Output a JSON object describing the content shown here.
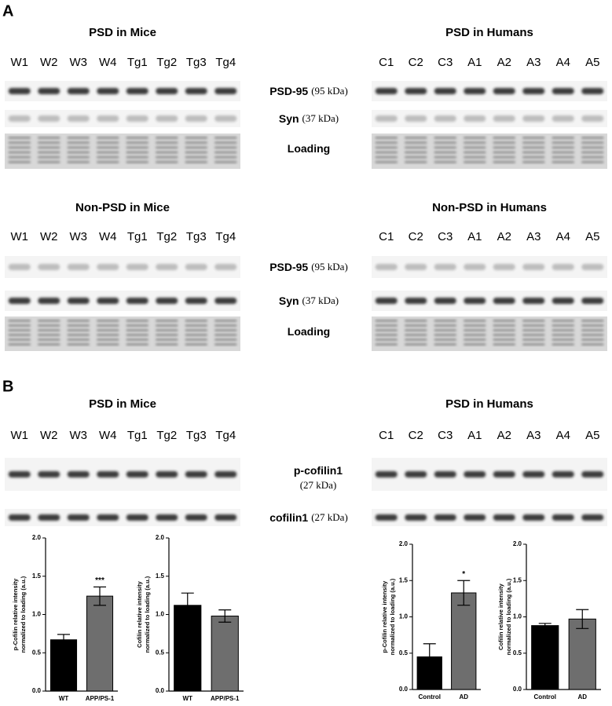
{
  "panel_a": {
    "label": "A",
    "blots": [
      {
        "title": "PSD in Mice",
        "lanes": [
          "W1",
          "W2",
          "W3",
          "W4",
          "Tg1",
          "Tg2",
          "Tg3",
          "Tg4"
        ]
      },
      {
        "title": "PSD in Humans",
        "lanes": [
          "C1",
          "C2",
          "C3",
          "A1",
          "A2",
          "A3",
          "A4",
          "A5"
        ]
      },
      {
        "title": "Non-PSD in Mice",
        "lanes": [
          "W1",
          "W2",
          "W3",
          "W4",
          "Tg1",
          "Tg2",
          "Tg3",
          "Tg4"
        ]
      },
      {
        "title": "Non-PSD in Humans",
        "lanes": [
          "C1",
          "C2",
          "C3",
          "A1",
          "A2",
          "A3",
          "A4",
          "A5"
        ]
      }
    ],
    "rows": [
      [
        {
          "name": "PSD-95",
          "mw": "(95 kDa)"
        },
        {
          "name": "Syn",
          "mw": "(37 kDa)"
        },
        {
          "name": "Loading"
        }
      ],
      [
        {
          "name": "PSD-95",
          "mw": "(95 kDa)"
        },
        {
          "name": "Syn",
          "mw": "(37 kDa)"
        },
        {
          "name": "Loading"
        }
      ]
    ]
  },
  "panel_b": {
    "label": "B",
    "blots": [
      {
        "title": "PSD in Mice",
        "lanes": [
          "W1",
          "W2",
          "W3",
          "W4",
          "Tg1",
          "Tg2",
          "Tg3",
          "Tg4"
        ]
      },
      {
        "title": "PSD in Humans",
        "lanes": [
          "C1",
          "C2",
          "C3",
          "A1",
          "A2",
          "A3",
          "A4",
          "A5"
        ]
      }
    ],
    "rows": [
      {
        "name": "p-cofilin1",
        "mw": "(27 kDa)"
      },
      {
        "name": "cofilin1",
        "mw": "(27 kDa)"
      }
    ]
  },
  "chart_data": [
    {
      "type": "bar",
      "ylabel": [
        "p-Cofilin relative intensity",
        "normalized to loading (a.u.)"
      ],
      "categories": [
        "WT",
        "APP/PS-1"
      ],
      "values": [
        0.67,
        1.24
      ],
      "errors": [
        0.07,
        0.12
      ],
      "colors": [
        "#000000",
        "#6e6e6e"
      ],
      "annotations": [
        null,
        "***"
      ],
      "ylim": [
        0,
        2
      ],
      "yticks": [
        {
          "value": 0,
          "label": "0.0"
        },
        {
          "value": 0.5,
          "label": "0.5"
        },
        {
          "value": 1,
          "label": "1.0"
        },
        {
          "value": 1.5,
          "label": "1.5"
        },
        {
          "value": 2,
          "label": "2.0"
        }
      ]
    },
    {
      "type": "bar",
      "ylabel": [
        "Cofilin relative intensity",
        "normalized to loading (a.u.)"
      ],
      "categories": [
        "WT",
        "APP/PS-1"
      ],
      "values": [
        1.12,
        0.98
      ],
      "errors": [
        0.16,
        0.08
      ],
      "colors": [
        "#000000",
        "#6e6e6e"
      ],
      "annotations": [
        null,
        null
      ],
      "ylim": [
        0,
        2
      ],
      "yticks": [
        {
          "value": 0,
          "label": "0.0"
        },
        {
          "value": 0.5,
          "label": "0.5"
        },
        {
          "value": 1,
          "label": "1.0"
        },
        {
          "value": 1.5,
          "label": "1.5"
        },
        {
          "value": 2,
          "label": "2.0"
        }
      ]
    },
    {
      "type": "bar",
      "ylabel": [
        "p-Cofilin relative intensity",
        "normalized to loading (a.u.)"
      ],
      "categories": [
        "Control",
        "AD"
      ],
      "values": [
        0.45,
        1.33
      ],
      "errors": [
        0.18,
        0.17
      ],
      "colors": [
        "#000000",
        "#6e6e6e"
      ],
      "annotations": [
        null,
        "*"
      ],
      "ylim": [
        0,
        2
      ],
      "yticks": [
        {
          "value": 0,
          "label": "0.0"
        },
        {
          "value": 0.5,
          "label": "0.5"
        },
        {
          "value": 1,
          "label": "1.0"
        },
        {
          "value": 1.5,
          "label": "1.5"
        },
        {
          "value": 2,
          "label": "2.0"
        }
      ]
    },
    {
      "type": "bar",
      "ylabel": [
        "Cofilin relative intensity",
        "normalized to loading (a.u.)"
      ],
      "categories": [
        "Control",
        "AD"
      ],
      "values": [
        0.88,
        0.97
      ],
      "errors": [
        0.03,
        0.13
      ],
      "colors": [
        "#000000",
        "#6e6e6e"
      ],
      "annotations": [
        null,
        null
      ],
      "ylim": [
        0,
        2
      ],
      "yticks": [
        {
          "value": 0,
          "label": "0.0"
        },
        {
          "value": 0.5,
          "label": "0.5"
        },
        {
          "value": 1,
          "label": "1.0"
        },
        {
          "value": 1.5,
          "label": "1.5"
        },
        {
          "value": 2,
          "label": "2.0"
        }
      ]
    }
  ]
}
